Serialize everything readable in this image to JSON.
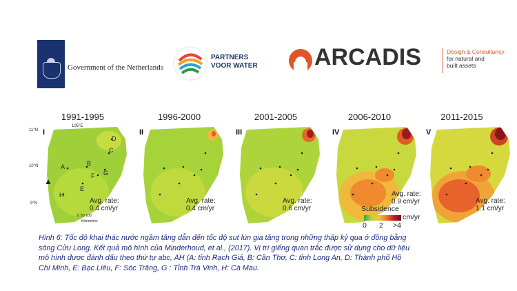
{
  "logos": {
    "gov_text": "Government of the Netherlands",
    "pvw_line1": "PARTNERS",
    "pvw_line2": "VOOR WATER",
    "arc_name": "ARCADIS",
    "arc_tag1": "Design & Consultancy",
    "arc_tag2": "for natural and",
    "arc_tag3": "built assets"
  },
  "panels": [
    {
      "period": "1991-1995",
      "roman": "I",
      "rate_label": "Avg. rate:",
      "rate_value": "0.4 cm/yr"
    },
    {
      "period": "1996-2000",
      "roman": "II",
      "rate_label": "Avg. rate:",
      "rate_value": "0.4 cm/yr"
    },
    {
      "period": "2001-2005",
      "roman": "III",
      "rate_label": "Avg. rate:",
      "rate_value": "0.6 cm/yr"
    },
    {
      "period": "2006-2010",
      "roman": "IV",
      "rate_label": "Avg. rate:",
      "rate_value": "0.9 cm/yr"
    },
    {
      "period": "2011-2015",
      "roman": "V",
      "rate_label": "Avg. rate:",
      "rate_value": "1.1 cm/yr"
    }
  ],
  "map1_labels": {
    "a": "A",
    "b": "B",
    "c": "C",
    "d": "D",
    "e": "E",
    "f": "F",
    "g": "G",
    "h": "H",
    "lat1": "11°N",
    "lat2": "10°N",
    "lat3": "9°N",
    "lon": "105°E",
    "scale": "0  50  100",
    "scale_unit": "Kilometers"
  },
  "legend": {
    "title": "Subsidence",
    "unit": "cm/yr",
    "t0": "0",
    "t1": "2",
    "t2": ">4"
  },
  "caption": {
    "line1": "Hình 6: Tốc độ khai thác nước ngầm tăng dẫn đến tốc độ sụt lún gia tăng trong những thập kỷ qua ở đồng bằng",
    "line2": "sông Cửu Long. Kết quả mô hình của Minderhoud, et al., (2017). Vị trí giếng quan trắc được sử dụng cho dữ liệu",
    "line3": "mô hình được đánh dấu theo thứ tự abc, AH (A: tỉnh Rạch Giá, B: Cần Thơ, C: tỉnh Long An, D: Thành phố Hồ",
    "line4": "Chí Minh, E: Bạc Liêu, F: Sóc Trăng, G : Tỉnh Trà Vinh, H: Cà Mau."
  }
}
